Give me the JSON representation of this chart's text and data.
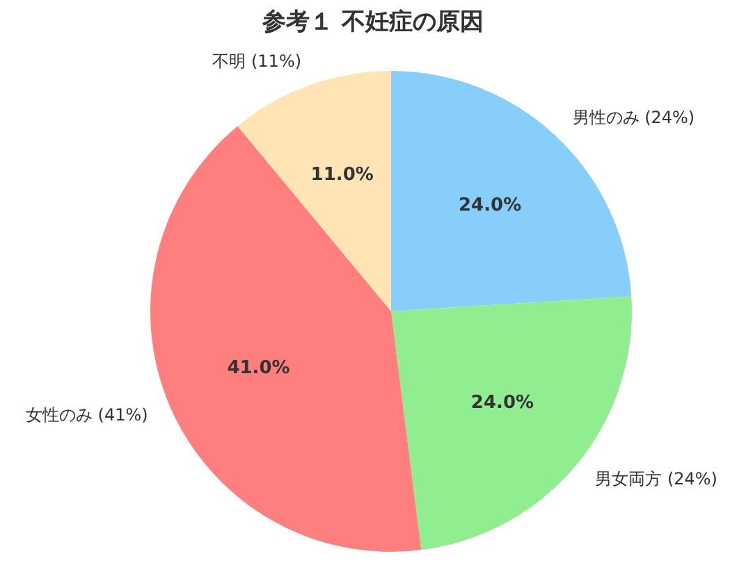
{
  "chart_data": {
    "type": "pie",
    "title": "参考１ 不妊症の原因",
    "categories": [
      "男性のみ (24%)",
      "男女両方 (24%)",
      "女性のみ (41%)",
      "不明 (11%)"
    ],
    "values": [
      24,
      24,
      41,
      11
    ],
    "colors": [
      "#87cefa",
      "#90ee90",
      "#ff7f7f",
      "#ffe4b5"
    ],
    "value_labels": [
      "24.0%",
      "24.0%",
      "41.0%",
      "11.0%"
    ],
    "legend": false
  }
}
